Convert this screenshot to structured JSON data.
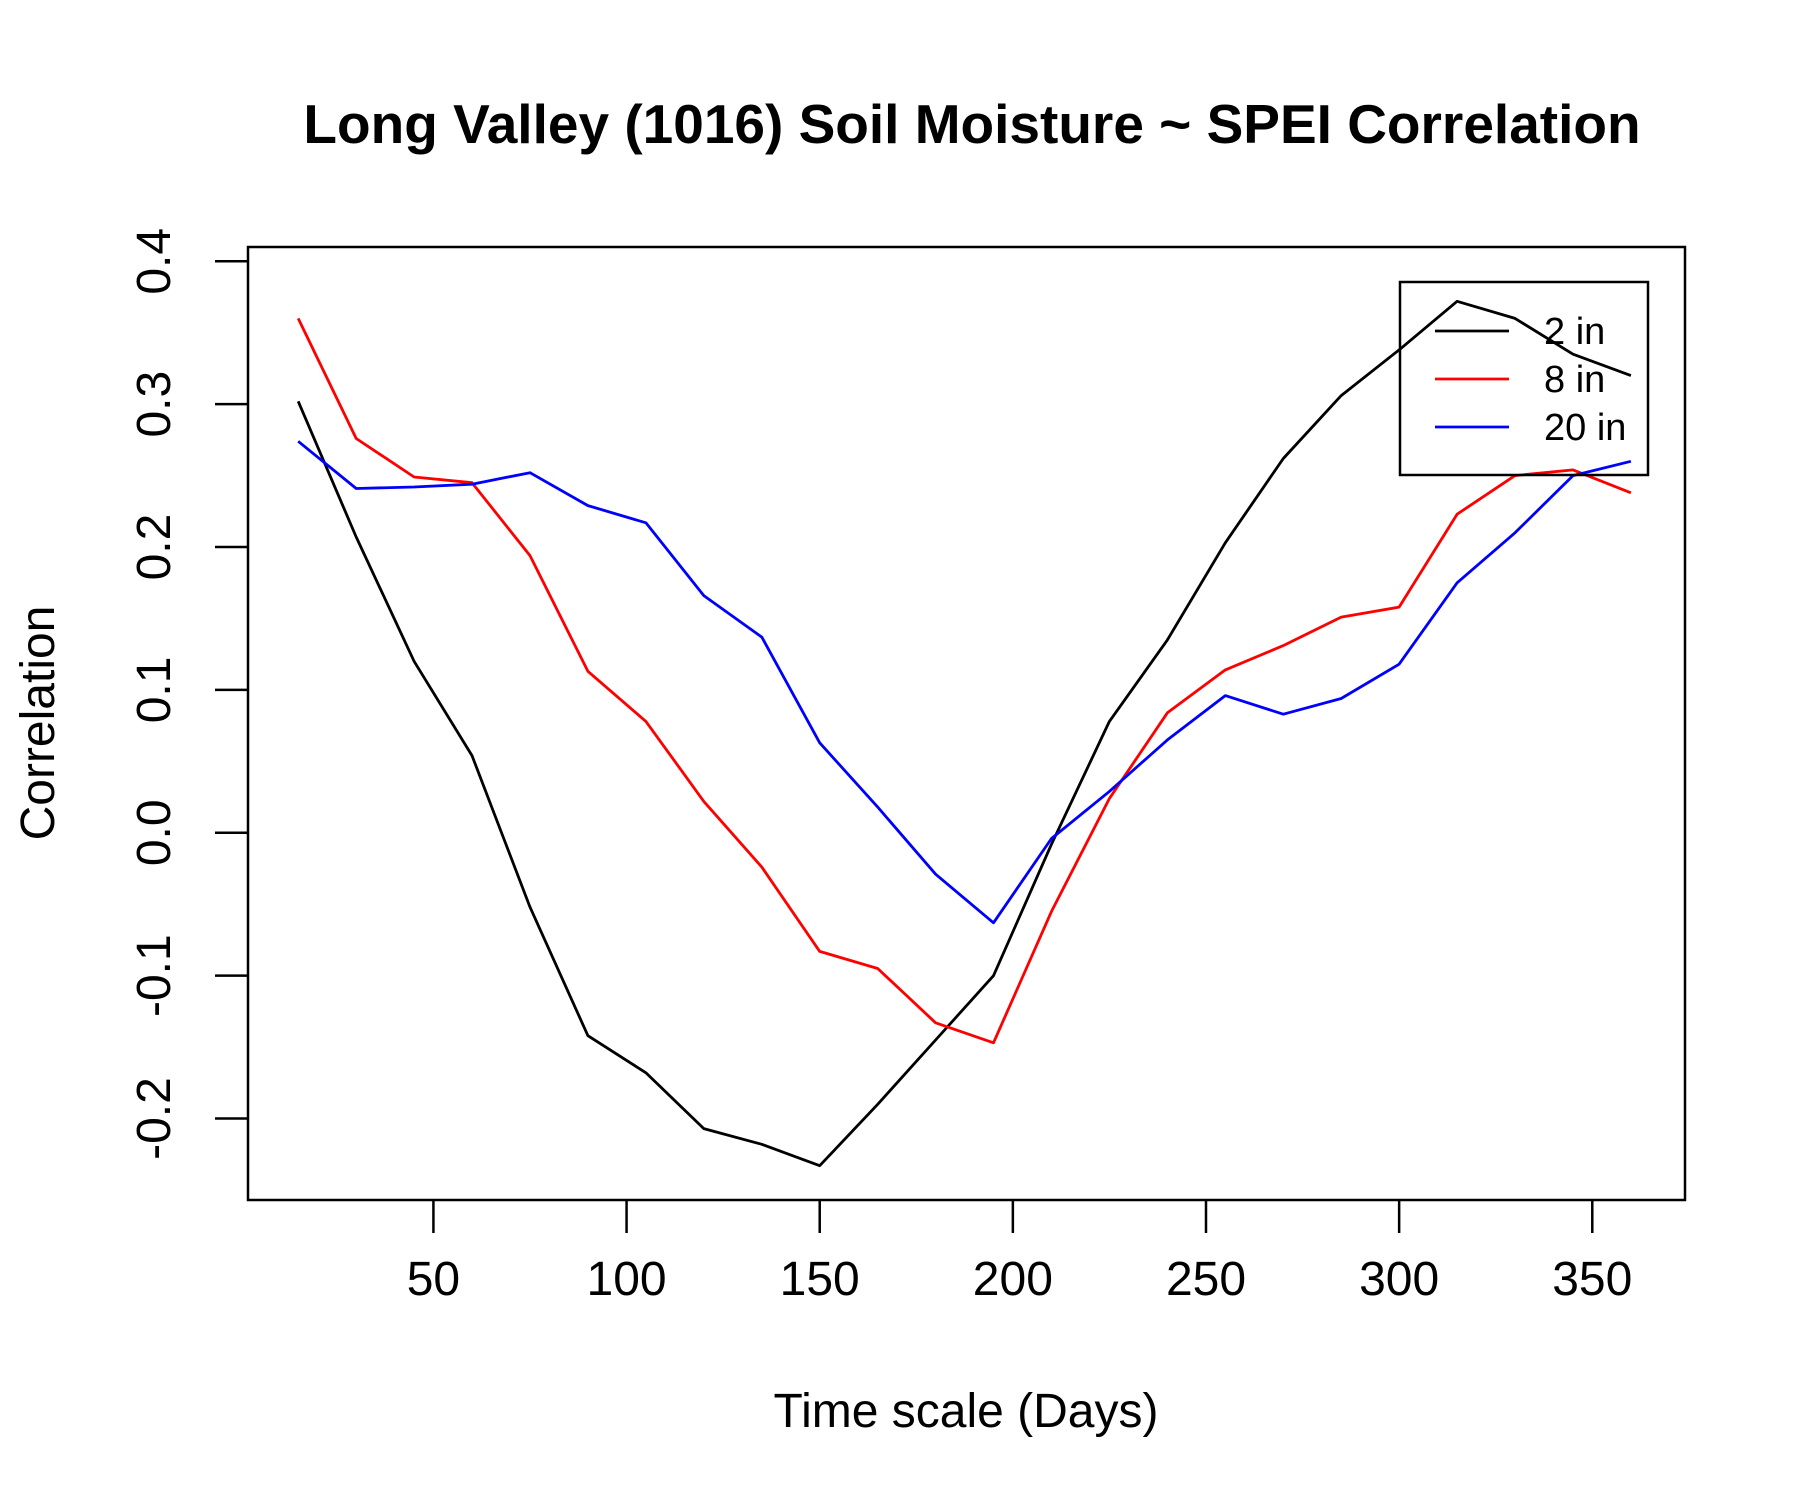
{
  "chart_data": {
    "type": "line",
    "title": "Long Valley (1016) Soil Moisture ~ SPEI Correlation",
    "xlabel": "Time scale (Days)",
    "ylabel": "Correlation",
    "xlim": [
      2,
      374
    ],
    "ylim": [
      -0.257,
      0.41
    ],
    "xticks": [
      50,
      100,
      150,
      200,
      250,
      300,
      350
    ],
    "xtick_labels": [
      "50",
      "100",
      "150",
      "200",
      "250",
      "300",
      "350"
    ],
    "yticks": [
      -0.2,
      -0.1,
      0.0,
      0.1,
      0.2,
      0.3,
      0.4
    ],
    "ytick_labels": [
      "-0.2",
      "-0.1",
      "0.0",
      "0.1",
      "0.2",
      "0.3",
      "0.4"
    ],
    "grid": false,
    "legend_position": "top-right",
    "x": [
      15,
      30,
      45,
      60,
      75,
      90,
      105,
      120,
      135,
      150,
      165,
      180,
      195,
      210,
      225,
      240,
      255,
      270,
      285,
      300,
      315,
      330,
      345,
      360
    ],
    "series": [
      {
        "name": "2 in",
        "color": "#000000",
        "values": [
          0.302,
          0.207,
          0.12,
          0.054,
          -0.052,
          -0.142,
          -0.168,
          -0.207,
          -0.218,
          -0.233,
          -0.19,
          -0.145,
          -0.1,
          -0.008,
          0.078,
          0.135,
          0.203,
          0.262,
          0.306,
          0.338,
          0.372,
          0.36,
          0.335,
          0.32
        ]
      },
      {
        "name": "8 in",
        "color": "#ff0000",
        "values": [
          0.36,
          0.276,
          0.249,
          0.245,
          0.194,
          0.113,
          0.078,
          0.022,
          -0.024,
          -0.083,
          -0.095,
          -0.133,
          -0.147,
          -0.055,
          0.024,
          0.084,
          0.114,
          0.131,
          0.151,
          0.158,
          0.223,
          0.25,
          0.254,
          0.238
        ]
      },
      {
        "name": "20 in",
        "color": "#0000ff",
        "values": [
          0.274,
          0.241,
          0.242,
          0.244,
          0.252,
          0.229,
          0.217,
          0.166,
          0.137,
          0.063,
          0.018,
          -0.029,
          -0.063,
          -0.004,
          0.029,
          0.065,
          0.096,
          0.083,
          0.094,
          0.118,
          0.175,
          0.21,
          0.25,
          0.26
        ]
      }
    ]
  }
}
